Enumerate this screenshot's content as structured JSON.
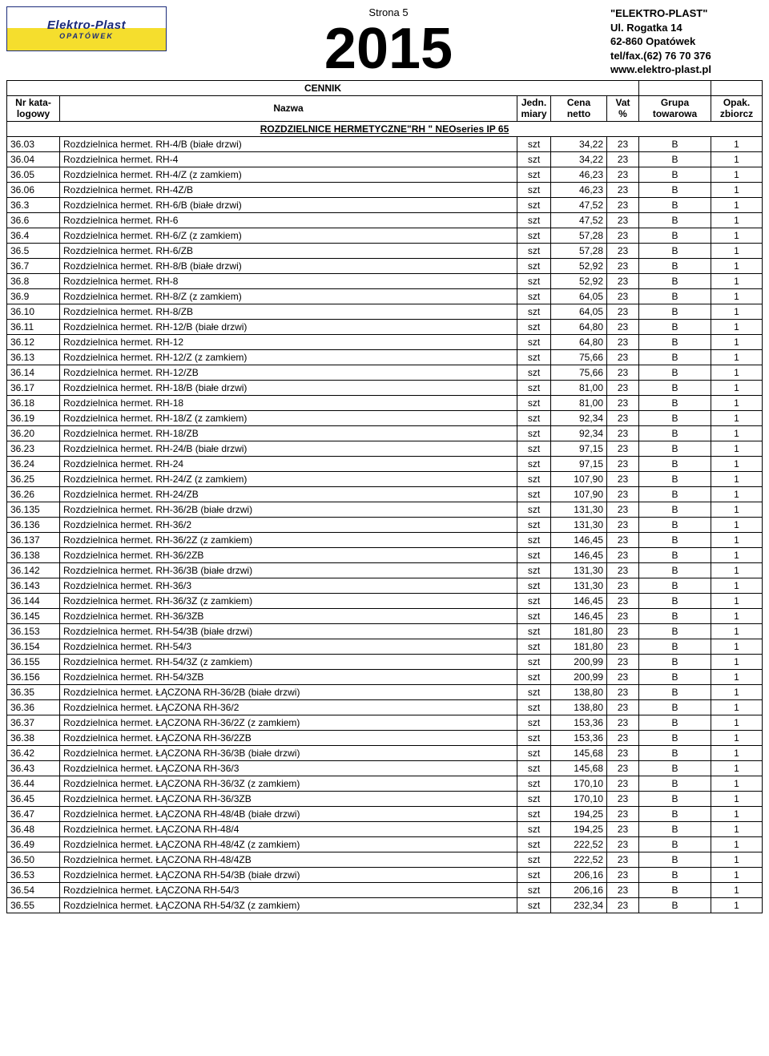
{
  "page_label": "Strona 5",
  "year": "2015",
  "company": {
    "name": "\"ELEKTRO-PLAST\"",
    "street": "Ul. Rogatka 14",
    "city": "62-860 Opatówek",
    "phone": "tel/fax.(62) 76 70 376",
    "web": "www.elektro-plast.pl"
  },
  "logo": {
    "brand": "Elektro-Plast",
    "sub": "OPATÓWEK"
  },
  "labels": {
    "cennik": "CENNIK",
    "h_kat": "Nr kata-\nlogowy",
    "h_name": "Nazwa",
    "h_unit": "Jedn.\nmiary",
    "h_price": "Cena\nnetto",
    "h_vat": "Vat\n%",
    "h_group": "Grupa\ntowarowa",
    "h_pack": "Opak.\nzbiorcz"
  },
  "section_title": "ROZDZIELNICE HERMETYCZNE\"RH \" NEOseries IP 65",
  "rows": [
    {
      "k": "36.03",
      "n": "Rozdzielnica hermet. RH-4/B (białe drzwi)",
      "u": "szt",
      "p": "34,22",
      "v": "23",
      "g": "B",
      "o": "1"
    },
    {
      "k": "36.04",
      "n": "Rozdzielnica hermet. RH-4",
      "u": "szt",
      "p": "34,22",
      "v": "23",
      "g": "B",
      "o": "1"
    },
    {
      "k": "36.05",
      "n": "Rozdzielnica hermet. RH-4/Z (z zamkiem)",
      "u": "szt",
      "p": "46,23",
      "v": "23",
      "g": "B",
      "o": "1"
    },
    {
      "k": "36.06",
      "n": "Rozdzielnica hermet. RH-4Z/B",
      "u": "szt",
      "p": "46,23",
      "v": "23",
      "g": "B",
      "o": "1"
    },
    {
      "k": "36.3",
      "n": "Rozdzielnica hermet. RH-6/B (białe drzwi)",
      "u": "szt",
      "p": "47,52",
      "v": "23",
      "g": "B",
      "o": "1"
    },
    {
      "k": "36.6",
      "n": "Rozdzielnica hermet. RH-6",
      "u": "szt",
      "p": "47,52",
      "v": "23",
      "g": "B",
      "o": "1"
    },
    {
      "k": "36.4",
      "n": "Rozdzielnica hermet. RH-6/Z (z zamkiem)",
      "u": "szt",
      "p": "57,28",
      "v": "23",
      "g": "B",
      "o": "1"
    },
    {
      "k": "36.5",
      "n": "Rozdzielnica hermet. RH-6/ZB",
      "u": "szt",
      "p": "57,28",
      "v": "23",
      "g": "B",
      "o": "1"
    },
    {
      "k": "36.7",
      "n": "Rozdzielnica hermet. RH-8/B (białe drzwi)",
      "u": "szt",
      "p": "52,92",
      "v": "23",
      "g": "B",
      "o": "1"
    },
    {
      "k": "36.8",
      "n": "Rozdzielnica hermet. RH-8",
      "u": "szt",
      "p": "52,92",
      "v": "23",
      "g": "B",
      "o": "1"
    },
    {
      "k": "36.9",
      "n": "Rozdzielnica hermet. RH-8/Z (z zamkiem)",
      "u": "szt",
      "p": "64,05",
      "v": "23",
      "g": "B",
      "o": "1"
    },
    {
      "k": "36.10",
      "n": "Rozdzielnica hermet. RH-8/ZB",
      "u": "szt",
      "p": "64,05",
      "v": "23",
      "g": "B",
      "o": "1"
    },
    {
      "k": "36.11",
      "n": "Rozdzielnica hermet. RH-12/B (białe drzwi)",
      "u": "szt",
      "p": "64,80",
      "v": "23",
      "g": "B",
      "o": "1"
    },
    {
      "k": "36.12",
      "n": "Rozdzielnica hermet. RH-12",
      "u": "szt",
      "p": "64,80",
      "v": "23",
      "g": "B",
      "o": "1"
    },
    {
      "k": "36.13",
      "n": "Rozdzielnica hermet. RH-12/Z (z zamkiem)",
      "u": "szt",
      "p": "75,66",
      "v": "23",
      "g": "B",
      "o": "1"
    },
    {
      "k": "36.14",
      "n": "Rozdzielnica hermet. RH-12/ZB",
      "u": "szt",
      "p": "75,66",
      "v": "23",
      "g": "B",
      "o": "1"
    },
    {
      "k": "36.17",
      "n": "Rozdzielnica hermet. RH-18/B (białe drzwi)",
      "u": "szt",
      "p": "81,00",
      "v": "23",
      "g": "B",
      "o": "1"
    },
    {
      "k": "36.18",
      "n": "Rozdzielnica hermet. RH-18",
      "u": "szt",
      "p": "81,00",
      "v": "23",
      "g": "B",
      "o": "1"
    },
    {
      "k": "36.19",
      "n": "Rozdzielnica hermet. RH-18/Z  (z zamkiem)",
      "u": "szt",
      "p": "92,34",
      "v": "23",
      "g": "B",
      "o": "1"
    },
    {
      "k": "36.20",
      "n": "Rozdzielnica hermet. RH-18/ZB",
      "u": "szt",
      "p": "92,34",
      "v": "23",
      "g": "B",
      "o": "1"
    },
    {
      "k": "36.23",
      "n": "Rozdzielnica hermet. RH-24/B (białe drzwi)",
      "u": "szt",
      "p": "97,15",
      "v": "23",
      "g": "B",
      "o": "1"
    },
    {
      "k": "36.24",
      "n": "Rozdzielnica hermet. RH-24",
      "u": "szt",
      "p": "97,15",
      "v": "23",
      "g": "B",
      "o": "1"
    },
    {
      "k": "36.25",
      "n": "Rozdzielnica hermet. RH-24/Z  (z zamkiem)",
      "u": "szt",
      "p": "107,90",
      "v": "23",
      "g": "B",
      "o": "1"
    },
    {
      "k": "36.26",
      "n": "Rozdzielnica hermet. RH-24/ZB",
      "u": "szt",
      "p": "107,90",
      "v": "23",
      "g": "B",
      "o": "1"
    },
    {
      "k": "36.135",
      "n": "Rozdzielnica hermet. RH-36/2B (białe drzwi)",
      "u": "szt",
      "p": "131,30",
      "v": "23",
      "g": "B",
      "o": "1"
    },
    {
      "k": "36.136",
      "n": "Rozdzielnica hermet. RH-36/2",
      "u": "szt",
      "p": "131,30",
      "v": "23",
      "g": "B",
      "o": "1"
    },
    {
      "k": "36.137",
      "n": "Rozdzielnica hermet. RH-36/2Z (z zamkiem)",
      "u": "szt",
      "p": "146,45",
      "v": "23",
      "g": "B",
      "o": "1"
    },
    {
      "k": "36.138",
      "n": "Rozdzielnica hermet. RH-36/2ZB",
      "u": "szt",
      "p": "146,45",
      "v": "23",
      "g": "B",
      "o": "1"
    },
    {
      "k": "36.142",
      "n": "Rozdzielnica hermet. RH-36/3B (białe drzwi)",
      "u": "szt",
      "p": "131,30",
      "v": "23",
      "g": "B",
      "o": "1"
    },
    {
      "k": "36.143",
      "n": "Rozdzielnica hermet. RH-36/3",
      "u": "szt",
      "p": "131,30",
      "v": "23",
      "g": "B",
      "o": "1"
    },
    {
      "k": "36.144",
      "n": "Rozdzielnica hermet. RH-36/3Z (z zamkiem)",
      "u": "szt",
      "p": "146,45",
      "v": "23",
      "g": "B",
      "o": "1"
    },
    {
      "k": "36.145",
      "n": "Rozdzielnica hermet. RH-36/3ZB",
      "u": "szt",
      "p": "146,45",
      "v": "23",
      "g": "B",
      "o": "1"
    },
    {
      "k": "36.153",
      "n": "Rozdzielnica hermet. RH-54/3B (białe drzwi)",
      "u": "szt",
      "p": "181,80",
      "v": "23",
      "g": "B",
      "o": "1"
    },
    {
      "k": "36.154",
      "n": "Rozdzielnica hermet. RH-54/3",
      "u": "szt",
      "p": "181,80",
      "v": "23",
      "g": "B",
      "o": "1"
    },
    {
      "k": "36.155",
      "n": "Rozdzielnica hermet. RH-54/3Z (z zamkiem)",
      "u": "szt",
      "p": "200,99",
      "v": "23",
      "g": "B",
      "o": "1"
    },
    {
      "k": "36.156",
      "n": "Rozdzielnica hermet. RH-54/3ZB",
      "u": "szt",
      "p": "200,99",
      "v": "23",
      "g": "B",
      "o": "1"
    },
    {
      "k": "36.35",
      "n": "Rozdzielnica hermet. ŁĄCZONA  RH-36/2B (białe drzwi)",
      "u": "szt",
      "p": "138,80",
      "v": "23",
      "g": "B",
      "o": "1"
    },
    {
      "k": "36.36",
      "n": "Rozdzielnica hermet. ŁĄCZONA RH-36/2",
      "u": "szt",
      "p": "138,80",
      "v": "23",
      "g": "B",
      "o": "1"
    },
    {
      "k": "36.37",
      "n": "Rozdzielnica hermet. ŁĄCZONA RH-36/2Z (z zamkiem)",
      "u": "szt",
      "p": "153,36",
      "v": "23",
      "g": "B",
      "o": "1"
    },
    {
      "k": "36.38",
      "n": "Rozdzielnica hermet. ŁĄCZONA RH-36/2ZB",
      "u": "szt",
      "p": "153,36",
      "v": "23",
      "g": "B",
      "o": "1"
    },
    {
      "k": "36.42",
      "n": "Rozdzielnica hermet. ŁĄCZONA RH-36/3B (białe drzwi)",
      "u": "szt",
      "p": "145,68",
      "v": "23",
      "g": "B",
      "o": "1"
    },
    {
      "k": "36.43",
      "n": "Rozdzielnica hermet. ŁĄCZONA RH-36/3",
      "u": "szt",
      "p": "145,68",
      "v": "23",
      "g": "B",
      "o": "1"
    },
    {
      "k": "36.44",
      "n": "Rozdzielnica hermet. ŁĄCZONA RH-36/3Z (z zamkiem)",
      "u": "szt",
      "p": "170,10",
      "v": "23",
      "g": "B",
      "o": "1"
    },
    {
      "k": "36.45",
      "n": "Rozdzielnica hermet. ŁĄCZONA RH-36/3ZB",
      "u": "szt",
      "p": "170,10",
      "v": "23",
      "g": "B",
      "o": "1"
    },
    {
      "k": "36.47",
      "n": "Rozdzielnica hermet. ŁĄCZONA RH-48/4B (białe drzwi)",
      "u": "szt",
      "p": "194,25",
      "v": "23",
      "g": "B",
      "o": "1"
    },
    {
      "k": "36.48",
      "n": "Rozdzielnica hermet. ŁĄCZONA RH-48/4",
      "u": "szt",
      "p": "194,25",
      "v": "23",
      "g": "B",
      "o": "1"
    },
    {
      "k": "36.49",
      "n": "Rozdzielnica hermet. ŁĄCZONA RH-48/4Z (z zamkiem)",
      "u": "szt",
      "p": "222,52",
      "v": "23",
      "g": "B",
      "o": "1"
    },
    {
      "k": "36.50",
      "n": "Rozdzielnica hermet. ŁĄCZONA RH-48/4ZB",
      "u": "szt",
      "p": "222,52",
      "v": "23",
      "g": "B",
      "o": "1"
    },
    {
      "k": "36.53",
      "n": "Rozdzielnica hermet. ŁĄCZONA RH-54/3B (białe drzwi)",
      "u": "szt",
      "p": "206,16",
      "v": "23",
      "g": "B",
      "o": "1"
    },
    {
      "k": "36.54",
      "n": "Rozdzielnica hermet. ŁĄCZONA RH-54/3",
      "u": "szt",
      "p": "206,16",
      "v": "23",
      "g": "B",
      "o": "1"
    },
    {
      "k": "36.55",
      "n": "Rozdzielnica hermet. ŁĄCZONA RH-54/3Z (z zamkiem)",
      "u": "szt",
      "p": "232,34",
      "v": "23",
      "g": "B",
      "o": "1"
    }
  ]
}
